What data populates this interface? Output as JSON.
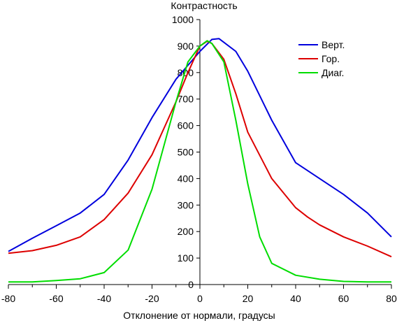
{
  "chart_data": {
    "type": "line",
    "title": "",
    "xlabel": "Отклонение от нормали, градусы",
    "ylabel": "Контрастность",
    "xlim": [
      -80,
      80
    ],
    "ylim": [
      0,
      1000
    ],
    "x_ticks": [
      -80,
      -60,
      -40,
      -20,
      0,
      20,
      40,
      60,
      80
    ],
    "y_ticks": [
      0,
      100,
      200,
      300,
      400,
      500,
      600,
      700,
      800,
      900,
      1000
    ],
    "grid": false,
    "legend_position": "top-right",
    "series": [
      {
        "name": "Верт.",
        "color": "#0000dd",
        "points": [
          [
            -80,
            125
          ],
          [
            -70,
            175
          ],
          [
            -60,
            222
          ],
          [
            -50,
            270
          ],
          [
            -40,
            340
          ],
          [
            -30,
            470
          ],
          [
            -20,
            630
          ],
          [
            -10,
            775
          ],
          [
            0,
            880
          ],
          [
            5,
            925
          ],
          [
            8,
            928
          ],
          [
            15,
            880
          ],
          [
            20,
            805
          ],
          [
            30,
            620
          ],
          [
            40,
            460
          ],
          [
            50,
            400
          ],
          [
            60,
            340
          ],
          [
            70,
            270
          ],
          [
            80,
            180
          ]
        ]
      },
      {
        "name": "Гор.",
        "color": "#dd0000",
        "points": [
          [
            -80,
            118
          ],
          [
            -70,
            128
          ],
          [
            -60,
            148
          ],
          [
            -50,
            180
          ],
          [
            -40,
            245
          ],
          [
            -30,
            345
          ],
          [
            -20,
            490
          ],
          [
            -10,
            690
          ],
          [
            -5,
            800
          ],
          [
            0,
            900
          ],
          [
            3,
            918
          ],
          [
            5,
            910
          ],
          [
            10,
            850
          ],
          [
            15,
            720
          ],
          [
            20,
            575
          ],
          [
            30,
            400
          ],
          [
            40,
            290
          ],
          [
            45,
            255
          ],
          [
            50,
            225
          ],
          [
            60,
            180
          ],
          [
            70,
            145
          ],
          [
            80,
            105
          ]
        ]
      },
      {
        "name": "Диаг.",
        "color": "#00dd00",
        "points": [
          [
            -80,
            10
          ],
          [
            -70,
            10
          ],
          [
            -60,
            15
          ],
          [
            -50,
            22
          ],
          [
            -40,
            45
          ],
          [
            -30,
            130
          ],
          [
            -20,
            360
          ],
          [
            -10,
            690
          ],
          [
            -5,
            840
          ],
          [
            0,
            900
          ],
          [
            3,
            920
          ],
          [
            5,
            910
          ],
          [
            10,
            840
          ],
          [
            15,
            620
          ],
          [
            20,
            380
          ],
          [
            25,
            180
          ],
          [
            30,
            80
          ],
          [
            40,
            35
          ],
          [
            50,
            20
          ],
          [
            60,
            12
          ],
          [
            70,
            10
          ],
          [
            80,
            10
          ]
        ]
      }
    ]
  }
}
